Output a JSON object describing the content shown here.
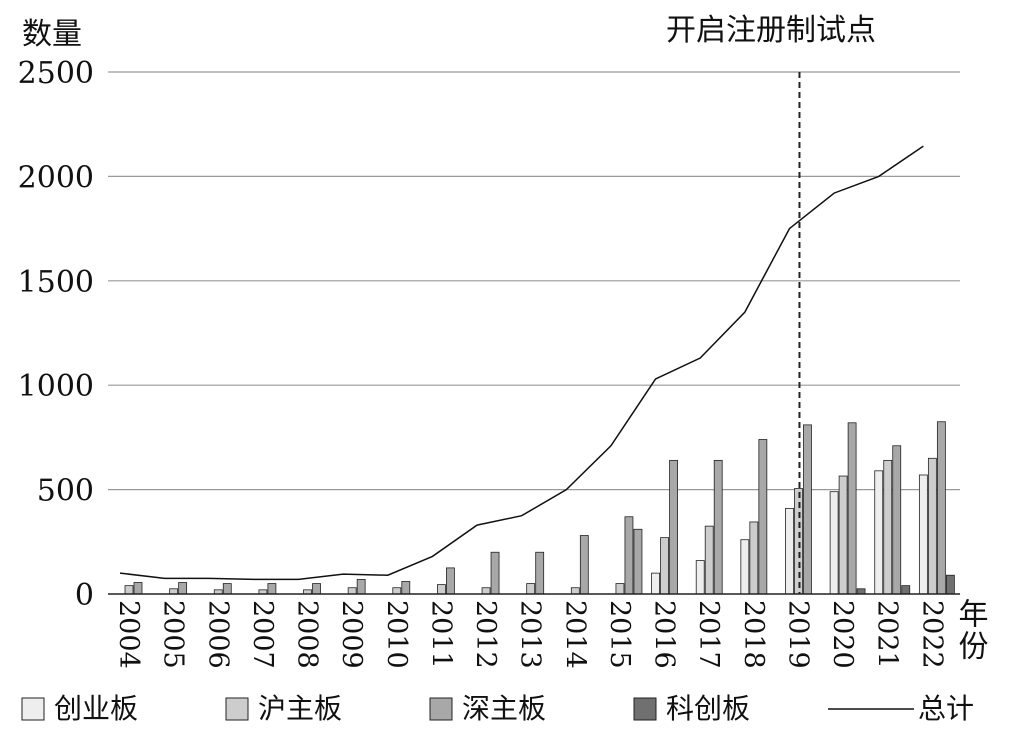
{
  "chart_data": {
    "type": "bar",
    "ylabel": "数量",
    "xlabel": "年份",
    "annotation": "开启注册制试点",
    "annotation_year": "2019",
    "ylim": [
      0,
      2500
    ],
    "yticks": [
      0,
      500,
      1000,
      1500,
      2000,
      2500
    ],
    "grid": true,
    "legend_position": "bottom",
    "categories": [
      "2004",
      "2005",
      "2006",
      "2007",
      "2008",
      "2009",
      "2010",
      "2011",
      "2012",
      "2013",
      "2014",
      "2015",
      "2016",
      "2017",
      "2018",
      "2019",
      "2020",
      "2021",
      "2022"
    ],
    "series": [
      {
        "name": "创业板",
        "type": "bar",
        "color": "#eeeeee",
        "values": [
          0,
          0,
          0,
          0,
          0,
          0,
          0,
          0,
          0,
          0,
          0,
          0,
          100,
          160,
          260,
          410,
          490,
          590,
          570
        ]
      },
      {
        "name": "沪主板",
        "type": "bar",
        "color": "#cdcdcd",
        "values": [
          40,
          25,
          20,
          20,
          20,
          30,
          30,
          45,
          30,
          50,
          30,
          50,
          270,
          325,
          345,
          505,
          565,
          640,
          650
        ]
      },
      {
        "name": "深主板",
        "type": "bar",
        "color": "#a8a8a8",
        "values": [
          55,
          55,
          50,
          50,
          50,
          70,
          60,
          125,
          200,
          200,
          280,
          370,
          640,
          640,
          740,
          810,
          820,
          710,
          825
        ]
      },
      {
        "name": "深主板b",
        "type": "bar_extra",
        "color": "#a8a8a8",
        "values": [
          0,
          0,
          0,
          0,
          0,
          0,
          0,
          0,
          0,
          0,
          0,
          310,
          0,
          0,
          0,
          0,
          0,
          0,
          0
        ]
      },
      {
        "name": "科创板",
        "type": "bar",
        "color": "#707070",
        "values": [
          0,
          0,
          0,
          0,
          0,
          0,
          0,
          0,
          0,
          0,
          0,
          0,
          0,
          0,
          0,
          0,
          25,
          40,
          90
        ]
      },
      {
        "name": "总计",
        "type": "line",
        "color": "#111111",
        "values": [
          100,
          75,
          75,
          70,
          70,
          95,
          90,
          180,
          330,
          375,
          500,
          710,
          1030,
          1130,
          1350,
          1750,
          1920,
          2000,
          2145
        ]
      }
    ]
  }
}
